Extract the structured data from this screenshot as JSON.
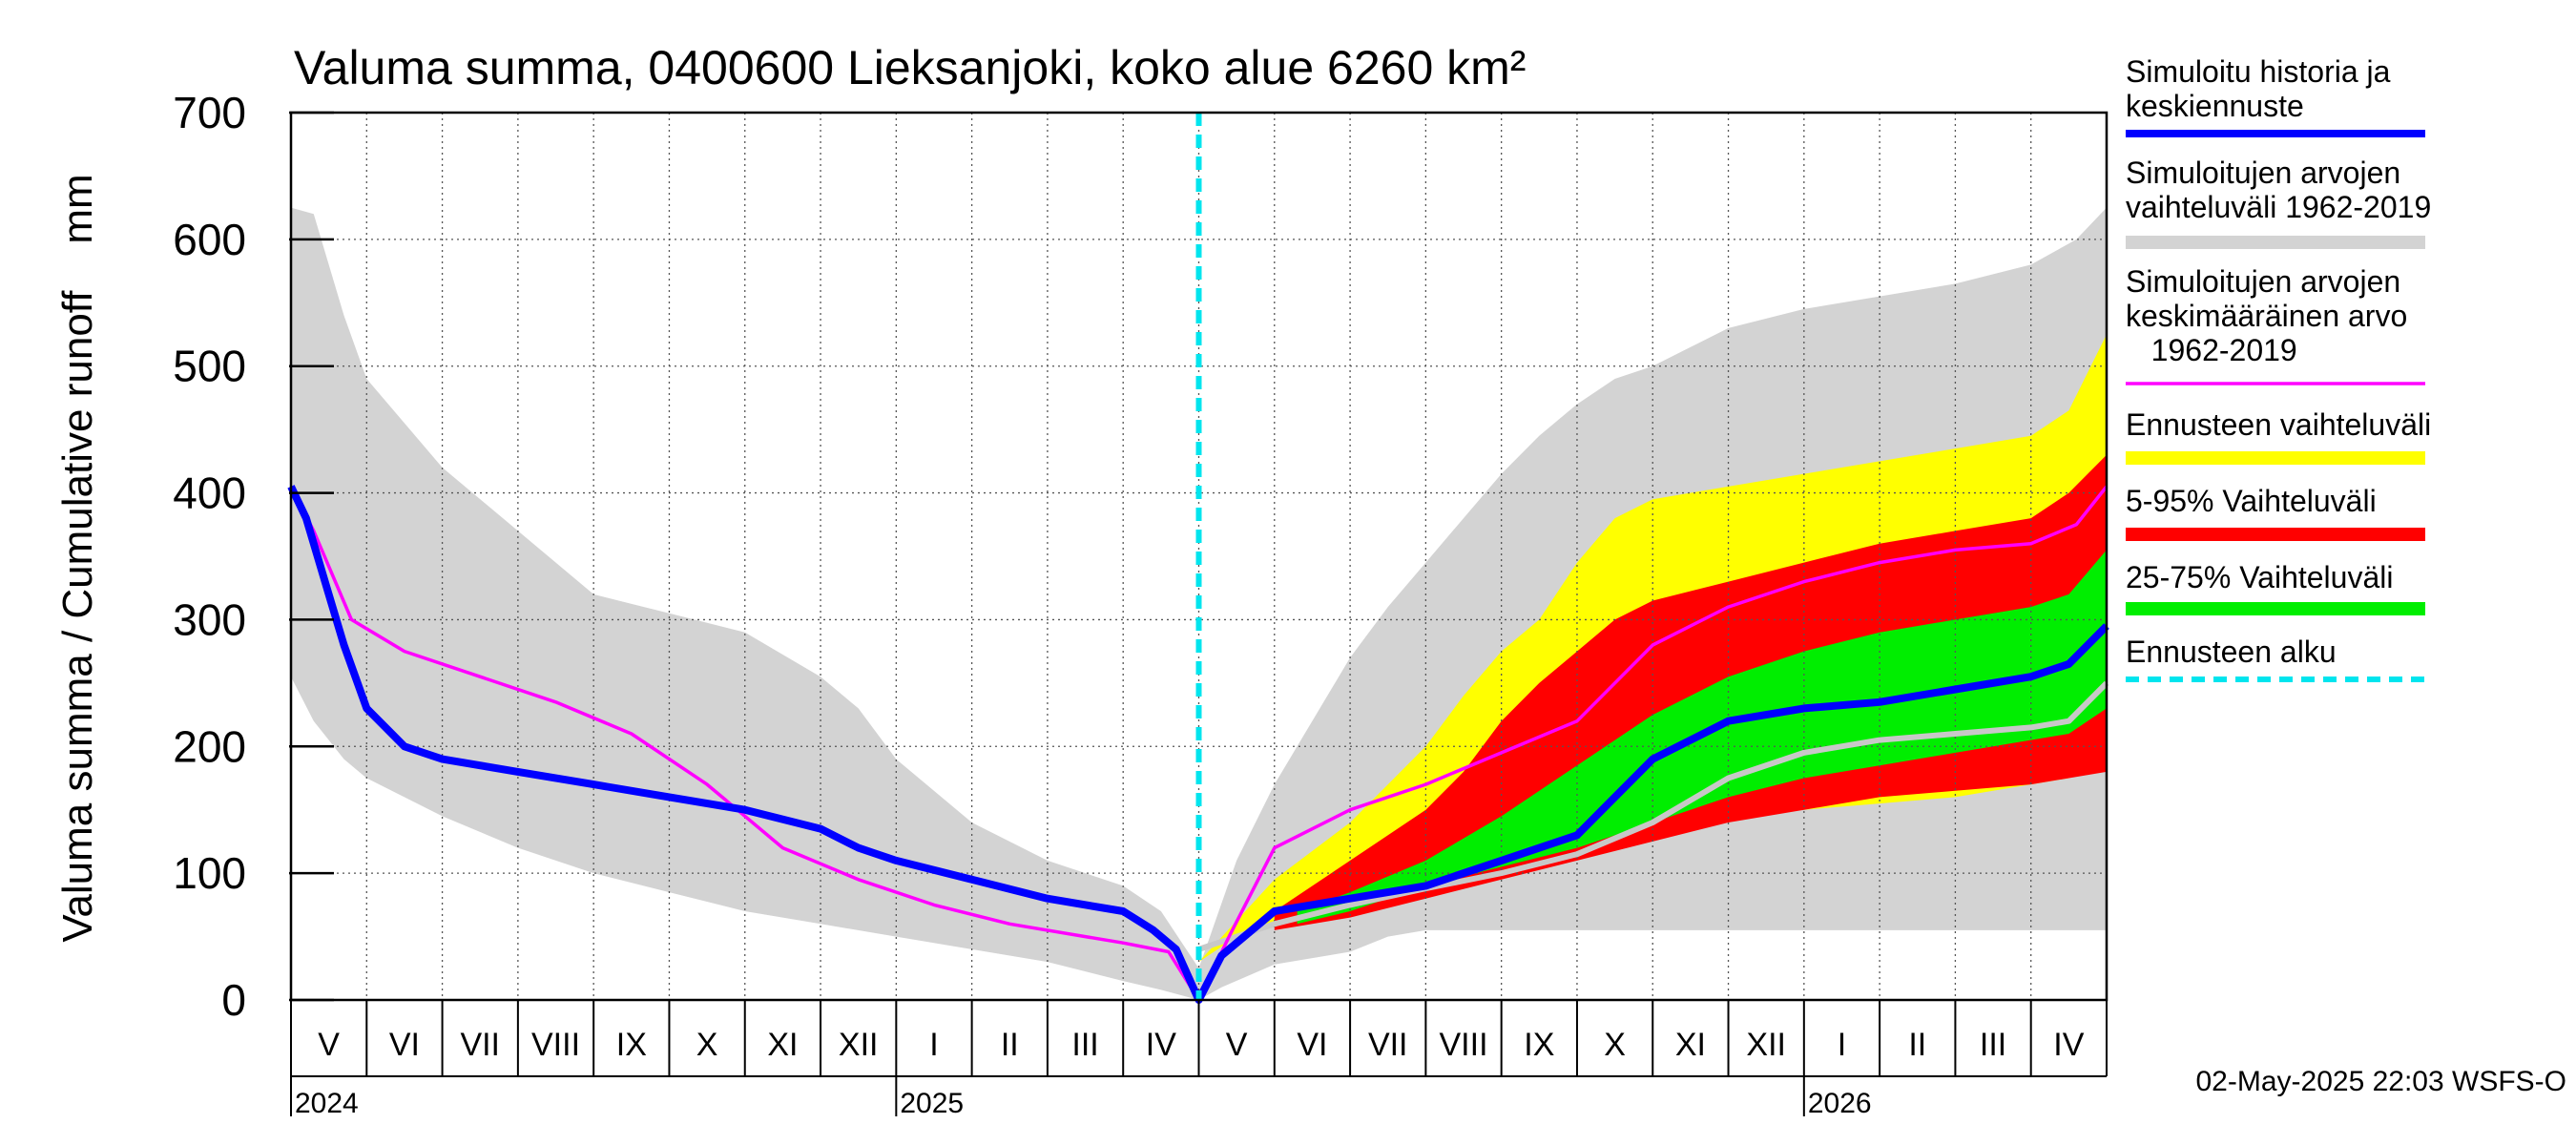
{
  "chart_data": {
    "type": "area",
    "title": "Valuma summa, 0400600 Lieksanjoki, koko alue 6260 km²",
    "ylabel": "Valuma summa / Cumulative runoff    mm",
    "xlabel": "",
    "ylim": [
      0,
      700
    ],
    "yticks": [
      0,
      100,
      200,
      300,
      400,
      500,
      600,
      700
    ],
    "grid": true,
    "x_unit": "months since 1 May 2024",
    "xlim": [
      0,
      24
    ],
    "forecast_start": 12.0,
    "month_labels": [
      "V",
      "VI",
      "VII",
      "VIII",
      "IX",
      "X",
      "XI",
      "XII",
      "I",
      "II",
      "III",
      "IV",
      "V",
      "VI",
      "VII",
      "VIII",
      "IX",
      "X",
      "XI",
      "XII",
      "I",
      "II",
      "III",
      "IV"
    ],
    "year_labels": [
      {
        "label": "2024",
        "x": 0
      },
      {
        "label": "2025",
        "x": 8
      },
      {
        "label": "2026",
        "x": 20
      }
    ],
    "timestamp": "02-May-2025 22:03 WSFS-O",
    "colors": {
      "blue": "#0000ff",
      "magenta": "#ff00ff",
      "grey": "#d3d3d3",
      "yellow": "#ffff00",
      "red": "#ff0000",
      "green": "#00ee00",
      "cyan": "#00e5ee",
      "light_grey_line": "#c8c8c8"
    },
    "legend": [
      {
        "label_lines": [
          "Simuloitu historia ja",
          "keskiennuste"
        ],
        "color": "#0000ff",
        "kind": "thickline"
      },
      {
        "label_lines": [
          "Simuloitujen arvojen",
          "vaihteluväli 1962-2019"
        ],
        "color": "#d3d3d3",
        "kind": "band"
      },
      {
        "label_lines": [
          "Simuloitujen arvojen",
          "keskimääräinen arvo",
          "   1962-2019"
        ],
        "color": "#ff00ff",
        "kind": "thinline"
      },
      {
        "label_lines": [
          "Ennusteen vaihteluväli"
        ],
        "color": "#ffff00",
        "kind": "band"
      },
      {
        "label_lines": [
          "5-95% Vaihteluväli"
        ],
        "color": "#ff0000",
        "kind": "band"
      },
      {
        "label_lines": [
          "25-75% Vaihteluväli"
        ],
        "color": "#00ee00",
        "kind": "band"
      },
      {
        "label_lines": [
          "Ennusteen alku"
        ],
        "color": "#00e5ee",
        "kind": "dashed"
      }
    ],
    "series": {
      "hist_range_upper": {
        "x": [
          0,
          0.3,
          0.7,
          1,
          2,
          3,
          4,
          5,
          6,
          7,
          7.5,
          8,
          9,
          10,
          11,
          11.5,
          12
        ],
        "y": [
          625,
          620,
          540,
          490,
          420,
          370,
          320,
          305,
          290,
          255,
          230,
          190,
          140,
          110,
          90,
          70,
          25
        ]
      },
      "hist_range_lower": {
        "x": [
          0,
          0.3,
          0.7,
          1,
          2,
          3,
          4,
          5,
          6,
          7,
          8,
          9,
          10,
          11,
          11.5,
          12
        ],
        "y": [
          255,
          220,
          190,
          175,
          145,
          120,
          100,
          85,
          70,
          60,
          50,
          40,
          30,
          15,
          8,
          0
        ]
      },
      "fc_range_upper": {
        "x": [
          12,
          12.5,
          13,
          13.5,
          14,
          14.5,
          15,
          15.5,
          16,
          16.5,
          17,
          17.5,
          18,
          18.5,
          19,
          20,
          21,
          22,
          23,
          23.6,
          24
        ],
        "y": [
          25,
          110,
          170,
          220,
          270,
          310,
          345,
          380,
          415,
          445,
          470,
          490,
          500,
          515,
          530,
          545,
          555,
          565,
          580,
          600,
          625
        ]
      },
      "fc_range_lower": {
        "x": [
          12,
          12.3,
          13,
          14,
          14.5,
          15,
          16,
          17,
          18,
          19,
          20,
          21,
          22,
          23,
          24
        ],
        "y": [
          0,
          10,
          28,
          38,
          50,
          55,
          55,
          55,
          55,
          55,
          55,
          55,
          55,
          55,
          55
        ]
      },
      "yellow_upper": {
        "x": [
          12,
          13,
          14,
          15,
          15.5,
          16,
          16.5,
          17,
          17.5,
          18,
          19,
          20,
          21,
          22,
          23,
          23.5,
          24
        ],
        "y": [
          30,
          95,
          140,
          200,
          240,
          275,
          300,
          345,
          380,
          395,
          405,
          415,
          425,
          435,
          445,
          465,
          525
        ]
      },
      "yellow_lower": {
        "x": [
          12,
          12.5,
          13,
          14,
          15,
          16,
          17,
          18,
          19,
          20,
          21,
          22,
          23,
          23.5,
          24
        ],
        "y": [
          30,
          50,
          60,
          75,
          90,
          105,
          120,
          135,
          145,
          150,
          155,
          160,
          170,
          175,
          185
        ]
      },
      "red_upper": {
        "x": [
          13,
          14,
          15,
          15.5,
          16,
          16.5,
          17,
          17.5,
          18,
          19,
          20,
          21,
          22,
          23,
          23.5,
          24
        ],
        "y": [
          70,
          110,
          150,
          180,
          220,
          250,
          275,
          300,
          315,
          330,
          345,
          360,
          370,
          380,
          400,
          430
        ]
      },
      "red_lower": {
        "x": [
          13,
          14,
          15,
          16,
          17,
          18,
          19,
          20,
          21,
          22,
          23,
          23.5,
          24
        ],
        "y": [
          55,
          65,
          80,
          95,
          110,
          125,
          140,
          150,
          160,
          165,
          170,
          175,
          180
        ]
      },
      "green_upper": {
        "x": [
          13.3,
          14,
          15,
          16,
          17,
          18,
          19,
          20,
          21,
          22,
          23,
          23.5,
          24
        ],
        "y": [
          70,
          85,
          110,
          145,
          185,
          225,
          255,
          275,
          290,
          300,
          310,
          320,
          355
        ]
      },
      "green_lower": {
        "x": [
          13.3,
          14,
          15,
          16,
          17,
          18,
          19,
          20,
          21,
          22,
          23,
          23.5,
          24
        ],
        "y": [
          60,
          70,
          90,
          105,
          120,
          140,
          160,
          175,
          185,
          195,
          205,
          210,
          230
        ]
      },
      "mean_sim": {
        "x": [
          0,
          0.3,
          0.8,
          1.5,
          2.5,
          3.5,
          4.5,
          5.5,
          6.5,
          7.5,
          8.5,
          9.5,
          10.5,
          11,
          11.6,
          12,
          12.4,
          13,
          14,
          15,
          16,
          17,
          18,
          19,
          20,
          21,
          22,
          23,
          23.6,
          24
        ],
        "y": [
          405,
          370,
          300,
          275,
          255,
          235,
          210,
          170,
          120,
          95,
          75,
          60,
          50,
          45,
          38,
          0,
          50,
          120,
          150,
          170,
          195,
          220,
          280,
          310,
          330,
          345,
          355,
          360,
          375,
          405
        ]
      },
      "median_line": {
        "x": [
          12,
          13,
          14,
          15,
          16,
          17,
          18,
          19,
          20,
          21,
          22,
          23,
          23.5,
          24
        ],
        "y": [
          40,
          60,
          75,
          88,
          100,
          115,
          140,
          175,
          195,
          205,
          210,
          215,
          220,
          250
        ]
      },
      "main_forecast": {
        "x": [
          0,
          0.2,
          0.5,
          0.7,
          1,
          1.5,
          2,
          3,
          4,
          5,
          6,
          7,
          7.5,
          8,
          9,
          10,
          11,
          11.4,
          11.7,
          12,
          12.3,
          13,
          14,
          15,
          16,
          17,
          17.5,
          18,
          19,
          20,
          21,
          22,
          23,
          23.5,
          24
        ],
        "y": [
          405,
          380,
          320,
          280,
          230,
          200,
          190,
          180,
          170,
          160,
          150,
          135,
          120,
          110,
          95,
          80,
          70,
          55,
          40,
          0,
          35,
          70,
          80,
          90,
          110,
          130,
          160,
          190,
          220,
          230,
          235,
          245,
          255,
          265,
          295
        ]
      }
    }
  }
}
